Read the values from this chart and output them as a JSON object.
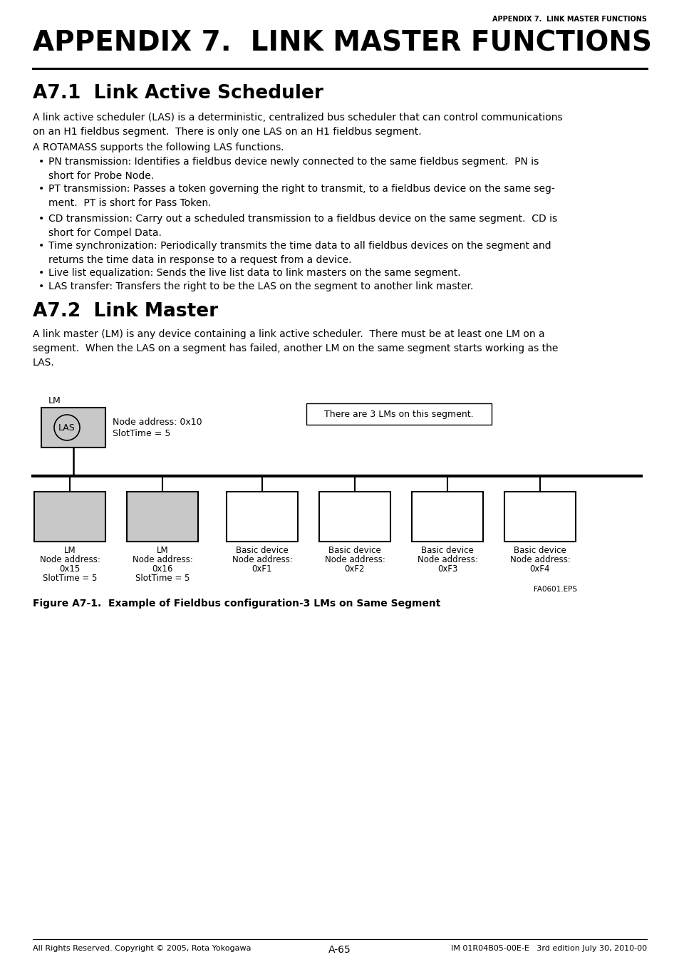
{
  "bg_color": "#ffffff",
  "header_text": "APPENDIX 7.  LINK MASTER FUNCTIONS",
  "main_title": "APPENDIX 7.  LINK MASTER FUNCTIONS",
  "section1_title": "A7.1  Link Active Scheduler",
  "section1_para1": "A link active scheduler (LAS) is a deterministic, centralized bus scheduler that can control communications\non an H1 fieldbus segment.  There is only one LAS on an H1 fieldbus segment.",
  "section1_para2": "A ROTAMASS supports the following LAS functions.",
  "bullets": [
    "PN transmission: Identifies a fieldbus device newly connected to the same fieldbus segment.  PN is\nshort for Probe Node.",
    "PT transmission: Passes a token governing the right to transmit, to a fieldbus device on the same seg-\nment.  PT is short for Pass Token.",
    "CD transmission: Carry out a scheduled transmission to a fieldbus device on the same segment.  CD is\nshort for Compel Data.",
    "Time synchronization: Periodically transmits the time data to all fieldbus devices on the segment and\nreturns the time data in response to a request from a device.",
    "Live list equalization: Sends the live list data to link masters on the same segment.",
    "LAS transfer: Transfers the right to be the LAS on the segment to another link master."
  ],
  "section2_title": "A7.2  Link Master",
  "section2_para": "A link master (LM) is any device containing a link active scheduler.  There must be at least one LM on a\nsegment.  When the LAS on a segment has failed, another LM on the same segment starts working as the\nLAS.",
  "figure_caption": "Figure A7-1.  Example of Fieldbus configuration-3 LMs on Same Segment",
  "footer_left": "All Rights Reserved. Copyright © 2005, Rota Yokogawa",
  "footer_center": "A-65",
  "footer_right": "IM 01R04B05-00E-E   3rd edition July 30, 2010-00",
  "diagram_label_top": "LM",
  "diagram_info_box": "There are 3 LMs on this segment.",
  "diagram_las_label": "LAS",
  "diagram_las_info1": "Node address: 0x10",
  "diagram_las_info2": "SlotTime = 5",
  "diagram_nodes": [
    {
      "label": "LM",
      "addr": "0x15",
      "slot": true,
      "gray": true
    },
    {
      "label": "LM",
      "addr": "0x16",
      "slot": true,
      "gray": true
    },
    {
      "label": "Basic device",
      "addr": "0xF1",
      "slot": false,
      "gray": false
    },
    {
      "label": "Basic device",
      "addr": "0xF2",
      "slot": false,
      "gray": false
    },
    {
      "label": "Basic device",
      "addr": "0xF3",
      "slot": false,
      "gray": false
    },
    {
      "label": "Basic device",
      "addr": "0xF4",
      "slot": false,
      "gray": false
    }
  ],
  "eps_label": "FA0601.EPS"
}
